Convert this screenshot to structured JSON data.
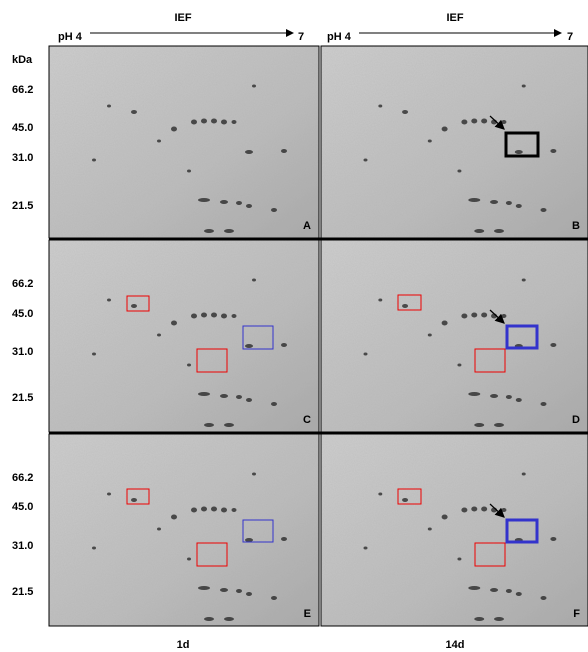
{
  "header": {
    "left": {
      "axis_title": "IEF",
      "start": "pH 4",
      "end": "7"
    },
    "right": {
      "axis_title": "IEF",
      "start": "pH 4",
      "end": "7"
    }
  },
  "mw_axis": {
    "unit": "kDa",
    "rows": [
      [
        "66.2",
        "45.0",
        "31.0",
        "21.5"
      ],
      [
        "66.2",
        "45.0",
        "31.0",
        "21.5"
      ],
      [
        "66.2",
        "45.0",
        "31.0",
        "21.5"
      ]
    ]
  },
  "panels": [
    {
      "label": "A"
    },
    {
      "label": "B"
    },
    {
      "label": "C"
    },
    {
      "label": "D"
    },
    {
      "label": "E"
    },
    {
      "label": "F"
    }
  ],
  "columns": [
    "1d",
    "14d"
  ]
}
